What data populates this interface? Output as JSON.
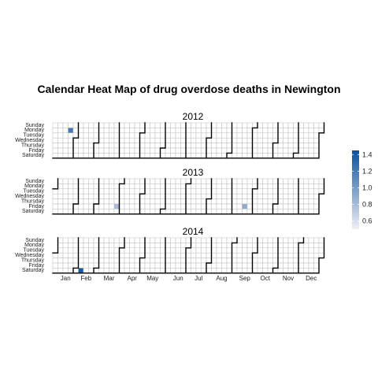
{
  "chart_data": {
    "type": "heatmap",
    "title": "Calendar Heat Map of drug overdose deaths in Newington",
    "weekdays": [
      "Sunday",
      "Monday",
      "Tuesday",
      "Wednesday",
      "Thursday",
      "Friday",
      "Saturday"
    ],
    "months": [
      "Jan",
      "Feb",
      "Mar",
      "Apr",
      "May",
      "Jun",
      "Jul",
      "Aug",
      "Sep",
      "Oct",
      "Nov",
      "Dec"
    ],
    "years": [
      "2012",
      "2013",
      "2014"
    ],
    "values": [
      {
        "date": "2012-01-23",
        "value": 1.2
      },
      {
        "date": "2013-03-29",
        "value": 0.8
      },
      {
        "date": "2013-09-20",
        "value": 0.9
      },
      {
        "date": "2014-02-08",
        "value": 1.4
      }
    ],
    "legend": {
      "range": [
        0.5,
        1.45
      ],
      "ticks": [
        "1.4",
        "1.2",
        "1.0",
        "0.8",
        "0.6"
      ],
      "tick_values": [
        1.4,
        1.2,
        1.0,
        0.8,
        0.6
      ],
      "color_low": "#f1eef6",
      "color_high": "#08519c",
      "position": "right"
    },
    "empty_color": "#ffffff",
    "grid_color": "#bdbdbd",
    "month_border_color": "#000000"
  }
}
